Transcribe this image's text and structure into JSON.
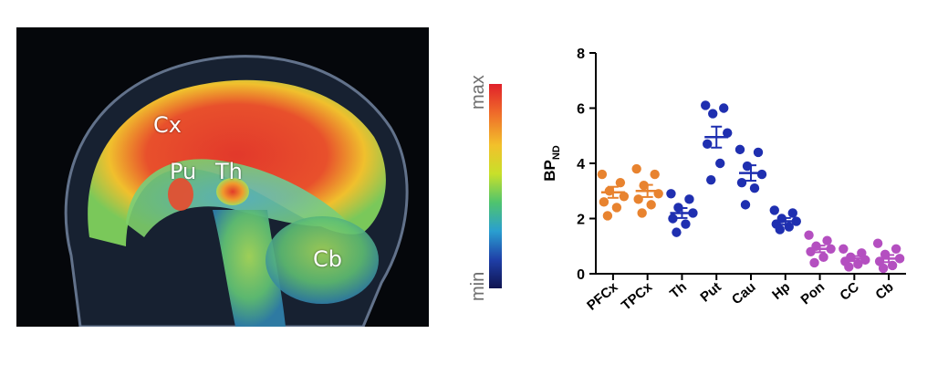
{
  "brain_image": {
    "labels": {
      "cx": "Cx",
      "pu": "Pu",
      "th": "Th",
      "cb": "Cb"
    }
  },
  "colorbar": {
    "max_label": "max",
    "min_label": "min",
    "colors": [
      "#e0202a",
      "#f2c12b",
      "#4fc46e",
      "#2a9fd0",
      "#0f1450"
    ]
  },
  "chart_data": {
    "type": "scatter",
    "ylabel": "BP",
    "ylabel_subscript": "ND",
    "ylim": [
      0,
      8
    ],
    "yticks": [
      0,
      2,
      4,
      6,
      8
    ],
    "categories": [
      "PFCx",
      "TPCx",
      "Th",
      "Put",
      "Cau",
      "Hp",
      "Pon",
      "CC",
      "Cb"
    ],
    "colors": {
      "PFCx": "#e8832f",
      "TPCx": "#e8832f",
      "Th": "#1f2fb0",
      "Put": "#1f2fb0",
      "Cau": "#1f2fb0",
      "Hp": "#1f2fb0",
      "Pon": "#b44fc0",
      "CC": "#b44fc0",
      "Cb": "#b44fc0"
    },
    "series": [
      {
        "category": "PFCx",
        "points": [
          3.6,
          3.3,
          3.0,
          2.8,
          2.6,
          2.4,
          2.1
        ],
        "mean": 2.95,
        "sem": 0.2
      },
      {
        "category": "TPCx",
        "points": [
          3.8,
          3.6,
          3.2,
          2.9,
          2.7,
          2.5,
          2.2
        ],
        "mean": 3.0,
        "sem": 0.22
      },
      {
        "category": "Th",
        "points": [
          2.9,
          2.7,
          2.4,
          2.2,
          2.0,
          1.8,
          1.5
        ],
        "mean": 2.2,
        "sem": 0.18
      },
      {
        "category": "Put",
        "points": [
          6.1,
          6.0,
          5.8,
          5.1,
          4.7,
          4.0,
          3.4
        ],
        "mean": 4.95,
        "sem": 0.38
      },
      {
        "category": "Cau",
        "points": [
          4.5,
          4.4,
          3.9,
          3.6,
          3.3,
          3.1,
          2.5
        ],
        "mean": 3.65,
        "sem": 0.28
      },
      {
        "category": "Hp",
        "points": [
          2.3,
          2.2,
          2.0,
          1.9,
          1.8,
          1.7,
          1.6
        ],
        "mean": 1.9,
        "sem": 0.12
      },
      {
        "category": "Pon",
        "points": [
          1.4,
          1.2,
          1.0,
          0.9,
          0.8,
          0.6,
          0.4
        ],
        "mean": 0.9,
        "sem": 0.12
      },
      {
        "category": "CC",
        "points": [
          0.9,
          0.75,
          0.6,
          0.5,
          0.45,
          0.35,
          0.25
        ],
        "mean": 0.55,
        "sem": 0.09
      },
      {
        "category": "Cb",
        "points": [
          1.1,
          0.9,
          0.7,
          0.55,
          0.45,
          0.3,
          0.2
        ],
        "mean": 0.55,
        "sem": 0.13
      }
    ]
  }
}
